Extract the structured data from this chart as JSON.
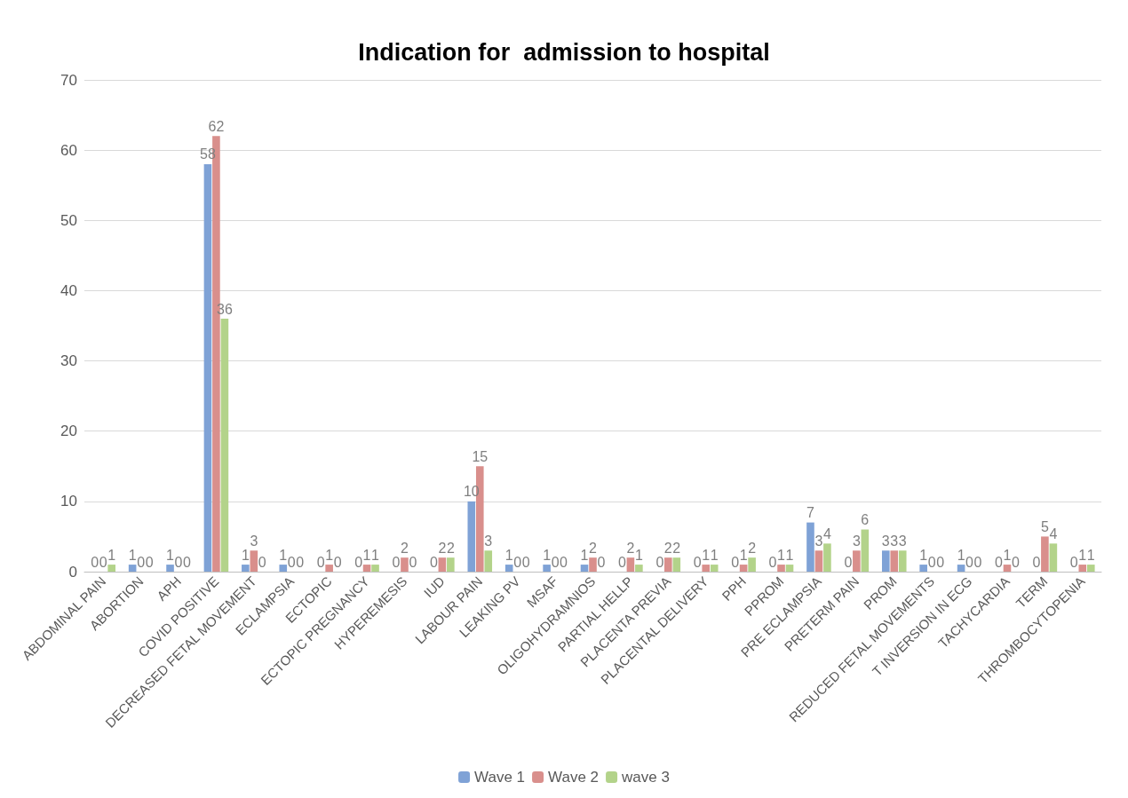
{
  "chart_data": {
    "type": "bar",
    "title": "Indication for  admission to hospital",
    "categories": [
      "ABDOMINAL PAIN",
      "ABORTION",
      "APH",
      "COVID POSITIVE",
      "DECREASED FETAL MOVEMENT",
      "ECLAMPSIA",
      "ECTOPIC",
      "ECTOPIC PREGNANCY",
      "HYPEREMESIS",
      "IUD",
      "LABOUR PAIN",
      "LEAKING PV",
      "MSAF",
      "OLIGOHYDRAMNIOS",
      "PARTIAL HELLP",
      "PLACENTA PREVIA",
      "PLACENTAL DELIVERY",
      "PPH",
      "PPROM",
      "PRE ECLAMPSIA",
      "PRETERM PAIN",
      "PROM",
      "REDUCED FETAL MOVEMENTS",
      "T INVERSION IN ECG",
      "TACHYCARDIA",
      "TERM",
      "THROMBOCYTOPENIA"
    ],
    "series": [
      {
        "name": "Wave 1",
        "color": "#7fa2d6",
        "values": [
          0,
          1,
          1,
          58,
          1,
          1,
          0,
          0,
          0,
          0,
          10,
          1,
          1,
          1,
          0,
          0,
          0,
          0,
          0,
          7,
          0,
          3,
          1,
          1,
          0,
          0,
          0
        ]
      },
      {
        "name": "Wave 2",
        "color": "#d98f8c",
        "values": [
          0,
          0,
          0,
          62,
          3,
          0,
          1,
          1,
          2,
          2,
          15,
          0,
          0,
          2,
          2,
          2,
          1,
          1,
          1,
          3,
          3,
          3,
          0,
          0,
          1,
          5,
          1
        ]
      },
      {
        "name": "wave 3",
        "color": "#b3d38a",
        "values": [
          1,
          0,
          0,
          36,
          0,
          0,
          0,
          1,
          0,
          2,
          3,
          0,
          0,
          0,
          1,
          2,
          1,
          2,
          1,
          4,
          6,
          3,
          0,
          0,
          0,
          4,
          1
        ]
      }
    ],
    "ylim": [
      0,
      70
    ],
    "yticks": [
      0,
      10,
      20,
      30,
      40,
      50,
      60,
      70
    ],
    "grid": "y",
    "legend": "bottom",
    "data_labels": true
  }
}
